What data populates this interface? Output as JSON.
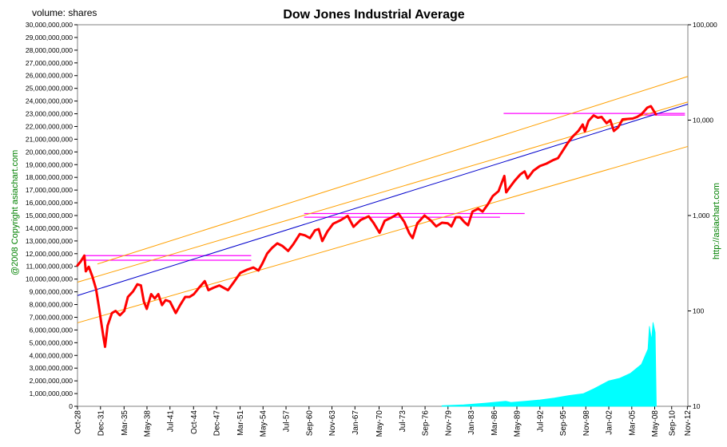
{
  "chart_data": {
    "type": "line",
    "title": "Dow Jones Industrial Average",
    "y_left_label": "volume: shares",
    "left_credit": "@2008 Copyright asiachart.com",
    "right_credit": "http://asiachart.com",
    "y_left_range": [
      0,
      30000000000
    ],
    "y_left_ticks": [
      "0",
      "1,000,000,000",
      "2,000,000,000",
      "3,000,000,000",
      "4,000,000,000",
      "5,000,000,000",
      "6,000,000,000",
      "7,000,000,000",
      "8,000,000,000",
      "9,000,000,000",
      "10,000,000,000",
      "11,000,000,000",
      "12,000,000,000",
      "13,000,000,000",
      "14,000,000,000",
      "15,000,000,000",
      "16,000,000,000",
      "17,000,000,000",
      "18,000,000,000",
      "19,000,000,000",
      "20,000,000,000",
      "21,000,000,000",
      "22,000,000,000",
      "23,000,000,000",
      "24,000,000,000",
      "25,000,000,000",
      "26,000,000,000",
      "27,000,000,000",
      "28,000,000,000",
      "29,000,000,000",
      "30,000,000,000"
    ],
    "y_right_scale": "log",
    "y_right_range": [
      10,
      100000
    ],
    "y_right_ticks": [
      {
        "value": 10,
        "label": "10"
      },
      {
        "value": 100,
        "label": "100"
      },
      {
        "value": 1000,
        "label": "1,000"
      },
      {
        "value": 10000,
        "label": "10,000"
      },
      {
        "value": 100000,
        "label": "100,000"
      }
    ],
    "x_range": [
      1928.75,
      2012.9
    ],
    "x_ticks": [
      {
        "t": 1928.75,
        "label": "Oct-28"
      },
      {
        "t": 1931.92,
        "label": "Dec-31"
      },
      {
        "t": 1935.17,
        "label": "Mar-35"
      },
      {
        "t": 1938.33,
        "label": "May-38"
      },
      {
        "t": 1941.5,
        "label": "Jul-41"
      },
      {
        "t": 1944.75,
        "label": "Oct-44"
      },
      {
        "t": 1947.92,
        "label": "Dec-47"
      },
      {
        "t": 1951.17,
        "label": "Mar-51"
      },
      {
        "t": 1954.33,
        "label": "May-54"
      },
      {
        "t": 1957.5,
        "label": "Jul-57"
      },
      {
        "t": 1960.67,
        "label": "Sep-60"
      },
      {
        "t": 1963.83,
        "label": "Nov-63"
      },
      {
        "t": 1967.0,
        "label": "Jan-67"
      },
      {
        "t": 1970.33,
        "label": "May-70"
      },
      {
        "t": 1973.5,
        "label": "Jul-73"
      },
      {
        "t": 1976.67,
        "label": "Sep-76"
      },
      {
        "t": 1979.83,
        "label": "Nov-79"
      },
      {
        "t": 1983.0,
        "label": "Jan-83"
      },
      {
        "t": 1986.17,
        "label": "Mar-86"
      },
      {
        "t": 1989.33,
        "label": "May-89"
      },
      {
        "t": 1992.5,
        "label": "Jul-92"
      },
      {
        "t": 1995.67,
        "label": "Sep-95"
      },
      {
        "t": 1998.83,
        "label": "Nov-98"
      },
      {
        "t": 2002.0,
        "label": "Jan-02"
      },
      {
        "t": 2005.17,
        "label": "Mar-05"
      },
      {
        "t": 2008.33,
        "label": "May-08"
      },
      {
        "t": 2010.67,
        "label": "Sep-10"
      },
      {
        "t": 2012.83,
        "label": "Nov-12"
      }
    ],
    "series": [
      {
        "axis": "right",
        "color": "#ff0000",
        "points": [
          [
            1928.75,
            300
          ],
          [
            1929.2,
            330
          ],
          [
            1929.7,
            380
          ],
          [
            1929.9,
            260
          ],
          [
            1930.3,
            290
          ],
          [
            1930.8,
            230
          ],
          [
            1931.3,
            170
          ],
          [
            1931.7,
            110
          ],
          [
            1932.3,
            55
          ],
          [
            1932.55,
            42
          ],
          [
            1932.9,
            70
          ],
          [
            1933.5,
            95
          ],
          [
            1934.0,
            100
          ],
          [
            1934.6,
            90
          ],
          [
            1935.2,
            100
          ],
          [
            1935.7,
            140
          ],
          [
            1936.4,
            160
          ],
          [
            1937.0,
            190
          ],
          [
            1937.5,
            185
          ],
          [
            1937.9,
            125
          ],
          [
            1938.3,
            105
          ],
          [
            1938.9,
            150
          ],
          [
            1939.4,
            135
          ],
          [
            1939.9,
            150
          ],
          [
            1940.4,
            115
          ],
          [
            1940.9,
            130
          ],
          [
            1941.5,
            125
          ],
          [
            1942.3,
            95
          ],
          [
            1942.9,
            115
          ],
          [
            1943.6,
            140
          ],
          [
            1944.2,
            140
          ],
          [
            1944.8,
            150
          ],
          [
            1945.5,
            175
          ],
          [
            1946.3,
            205
          ],
          [
            1946.8,
            165
          ],
          [
            1947.5,
            175
          ],
          [
            1948.3,
            185
          ],
          [
            1948.9,
            175
          ],
          [
            1949.5,
            165
          ],
          [
            1950.3,
            200
          ],
          [
            1951.2,
            250
          ],
          [
            1952.1,
            270
          ],
          [
            1953.0,
            285
          ],
          [
            1953.7,
            265
          ],
          [
            1954.2,
            310
          ],
          [
            1954.9,
            400
          ],
          [
            1955.6,
            460
          ],
          [
            1956.3,
            510
          ],
          [
            1957.0,
            480
          ],
          [
            1957.8,
            425
          ],
          [
            1958.5,
            500
          ],
          [
            1959.4,
            640
          ],
          [
            1960.1,
            620
          ],
          [
            1960.8,
            580
          ],
          [
            1961.5,
            700
          ],
          [
            1962.0,
            720
          ],
          [
            1962.5,
            540
          ],
          [
            1963.2,
            680
          ],
          [
            1964.0,
            820
          ],
          [
            1965.0,
            890
          ],
          [
            1966.0,
            990
          ],
          [
            1966.8,
            760
          ],
          [
            1967.8,
            900
          ],
          [
            1968.9,
            980
          ],
          [
            1969.6,
            830
          ],
          [
            1970.4,
            660
          ],
          [
            1971.1,
            880
          ],
          [
            1972.0,
            950
          ],
          [
            1973.0,
            1050
          ],
          [
            1973.8,
            860
          ],
          [
            1974.5,
            650
          ],
          [
            1974.95,
            580
          ],
          [
            1975.6,
            830
          ],
          [
            1976.6,
            1000
          ],
          [
            1977.5,
            880
          ],
          [
            1978.2,
            770
          ],
          [
            1979.0,
            840
          ],
          [
            1979.8,
            830
          ],
          [
            1980.3,
            770
          ],
          [
            1980.9,
            960
          ],
          [
            1981.5,
            960
          ],
          [
            1982.1,
            850
          ],
          [
            1982.6,
            790
          ],
          [
            1983.2,
            1100
          ],
          [
            1984.0,
            1180
          ],
          [
            1984.6,
            1100
          ],
          [
            1985.3,
            1300
          ],
          [
            1986.0,
            1600
          ],
          [
            1986.8,
            1800
          ],
          [
            1987.6,
            2600
          ],
          [
            1987.85,
            1750
          ],
          [
            1988.4,
            2000
          ],
          [
            1989.0,
            2300
          ],
          [
            1989.8,
            2700
          ],
          [
            1990.4,
            2900
          ],
          [
            1990.8,
            2450
          ],
          [
            1991.6,
            2950
          ],
          [
            1992.5,
            3300
          ],
          [
            1993.4,
            3500
          ],
          [
            1994.3,
            3800
          ],
          [
            1995.0,
            4000
          ],
          [
            1995.6,
            4700
          ],
          [
            1996.3,
            5700
          ],
          [
            1997.0,
            6700
          ],
          [
            1997.8,
            7700
          ],
          [
            1998.4,
            9000
          ],
          [
            1998.7,
            7600
          ],
          [
            1999.2,
            9800
          ],
          [
            1999.9,
            11200
          ],
          [
            2000.5,
            10600
          ],
          [
            2001.0,
            10800
          ],
          [
            2001.7,
            9300
          ],
          [
            2002.2,
            10000
          ],
          [
            2002.7,
            7700
          ],
          [
            2003.3,
            8400
          ],
          [
            2003.9,
            10200
          ],
          [
            2004.6,
            10300
          ],
          [
            2005.3,
            10400
          ],
          [
            2005.9,
            10800
          ],
          [
            2006.5,
            11500
          ],
          [
            2007.3,
            13500
          ],
          [
            2007.8,
            14000
          ],
          [
            2008.2,
            12500
          ],
          [
            2008.5,
            11500
          ]
        ]
      },
      {
        "axis": "left",
        "color": "#00ffff",
        "points": [
          [
            1979.0,
            50000000
          ],
          [
            1982.0,
            120000000
          ],
          [
            1985.0,
            250000000
          ],
          [
            1987.8,
            400000000
          ],
          [
            1988.5,
            300000000
          ],
          [
            1990.5,
            400000000
          ],
          [
            1992.5,
            500000000
          ],
          [
            1994.5,
            650000000
          ],
          [
            1996.5,
            850000000
          ],
          [
            1998.5,
            1000000000
          ],
          [
            2000.0,
            1400000000
          ],
          [
            2002.0,
            2000000000
          ],
          [
            2003.5,
            2200000000
          ],
          [
            2005.0,
            2600000000
          ],
          [
            2006.5,
            3300000000
          ],
          [
            2007.4,
            4500000000
          ],
          [
            2007.6,
            6300000000
          ],
          [
            2007.9,
            5200000000
          ],
          [
            2008.1,
            6600000000
          ],
          [
            2008.4,
            5800000000
          ],
          [
            2008.55,
            200000000
          ]
        ]
      }
    ],
    "horizontal_levels": [
      {
        "value": 380,
        "t_start": 1929.5,
        "t_end": 1952.7,
        "color": "#ff00ff"
      },
      {
        "value": 340,
        "t_start": 1929.5,
        "t_end": 1952.7,
        "color": "#ff00ff"
      },
      {
        "value": 1050,
        "t_start": 1960.0,
        "t_end": 1990.4,
        "color": "#ff00ff"
      },
      {
        "value": 960,
        "t_start": 1960.0,
        "t_end": 1987.0,
        "color": "#ff00ff"
      },
      {
        "value": 11750,
        "t_start": 1987.5,
        "t_end": 2012.5,
        "color": "#ff00ff"
      },
      {
        "value": 11300,
        "t_start": 2006.5,
        "t_end": 2012.5,
        "color": "#ff00ff"
      }
    ],
    "trend_lines": [
      {
        "t0": 1928.75,
        "v0": 145,
        "t1": 2012.9,
        "v1": 14700,
        "color": "#0000cc"
      },
      {
        "t0": 1931.5,
        "v0": 310,
        "t1": 2012.9,
        "v1": 28700,
        "color": "#ffa000"
      },
      {
        "t0": 1928.75,
        "v0": 200,
        "t1": 2012.9,
        "v1": 15500,
        "color": "#ffa000"
      },
      {
        "t0": 1928.75,
        "v0": 75,
        "t1": 2012.9,
        "v1": 5300,
        "color": "#ffa000"
      }
    ],
    "grid": false,
    "legend": "none"
  }
}
